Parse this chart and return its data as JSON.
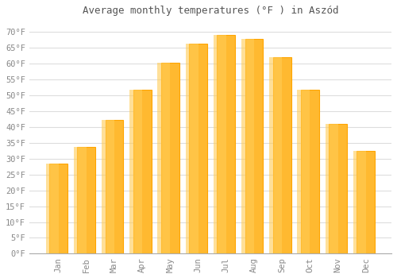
{
  "title": "Average monthly temperatures (°F ) in Aszód",
  "months": [
    "Jan",
    "Feb",
    "Mar",
    "Apr",
    "May",
    "Jun",
    "Jul",
    "Aug",
    "Sep",
    "Oct",
    "Nov",
    "Dec"
  ],
  "values": [
    28.4,
    33.8,
    42.1,
    51.8,
    60.3,
    66.2,
    69.1,
    67.8,
    62.1,
    51.8,
    41.0,
    32.4
  ],
  "bar_color_center": "#FFB930",
  "bar_color_edge": "#FFA500",
  "background_color": "#FFFFFF",
  "grid_color": "#DDDDDD",
  "text_color": "#888888",
  "title_color": "#555555",
  "ylim": [
    0,
    73
  ],
  "yticks": [
    0,
    5,
    10,
    15,
    20,
    25,
    30,
    35,
    40,
    45,
    50,
    55,
    60,
    65,
    70
  ],
  "figsize": [
    5.0,
    3.5
  ],
  "dpi": 100
}
